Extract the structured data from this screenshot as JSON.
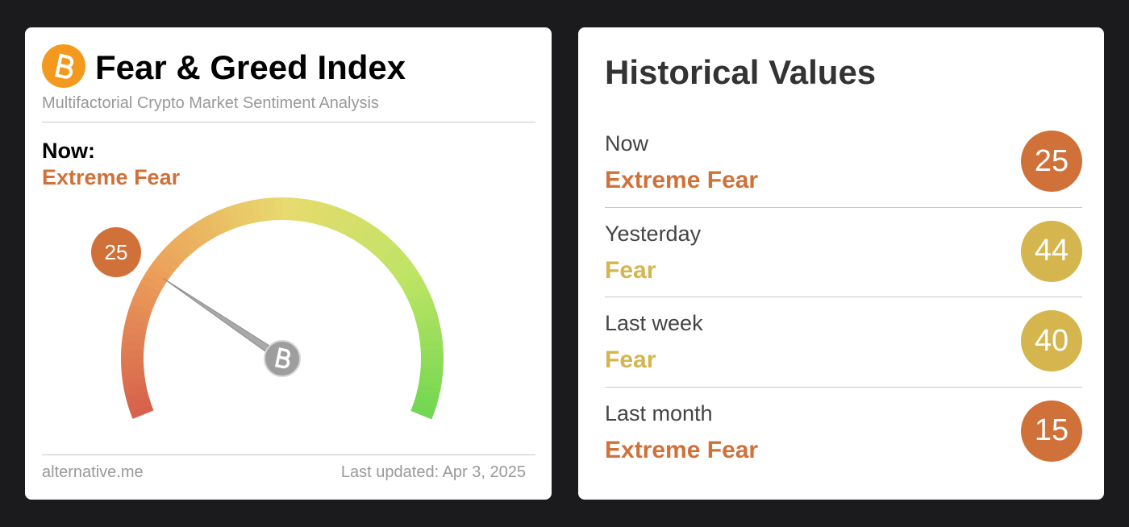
{
  "gauge_card": {
    "title": "Fear & Greed Index",
    "subtitle": "Multifactorial Crypto Market Sentiment Analysis",
    "now_label": "Now:",
    "classification": "Extreme Fear",
    "classification_color": "#d0713a",
    "value": 25,
    "source": "alternative.me",
    "updated": "Last updated: Apr 3, 2025"
  },
  "history_card": {
    "title": "Historical Values",
    "rows": [
      {
        "period": "Now",
        "classification": "Extreme Fear",
        "value": 25,
        "color": "#d0713a"
      },
      {
        "period": "Yesterday",
        "classification": "Fear",
        "value": 44,
        "color": "#d4b54e"
      },
      {
        "period": "Last week",
        "classification": "Fear",
        "value": 40,
        "color": "#d4b54e"
      },
      {
        "period": "Last month",
        "classification": "Extreme Fear",
        "value": 15,
        "color": "#d0713a"
      }
    ]
  }
}
